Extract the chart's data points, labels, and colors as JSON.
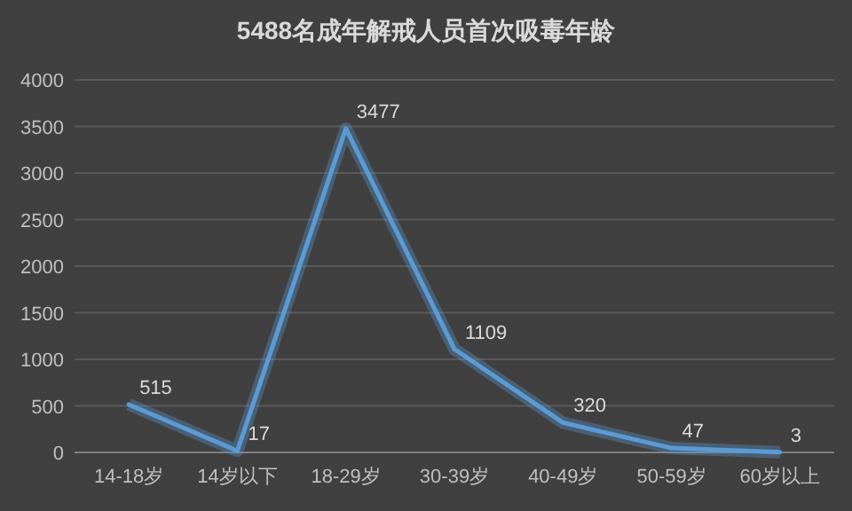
{
  "chart_data": {
    "type": "line",
    "title": "5488名成年解戒人员首次吸毒年龄",
    "categories": [
      "14-18岁",
      "14岁以下",
      "18-29岁",
      "30-39岁",
      "40-49岁",
      "50-59岁",
      "60岁以上"
    ],
    "series": [
      {
        "color": "#5b9bd5",
        "values": [
          515,
          17,
          3477,
          1109,
          320,
          47,
          3
        ]
      }
    ],
    "ylim": [
      0,
      4000
    ],
    "yticks": [
      0,
      500,
      1000,
      1500,
      2000,
      2500,
      3000,
      3500,
      4000
    ],
    "grid": "y",
    "data_labels": true,
    "marker": "none",
    "line_style": "solid"
  }
}
